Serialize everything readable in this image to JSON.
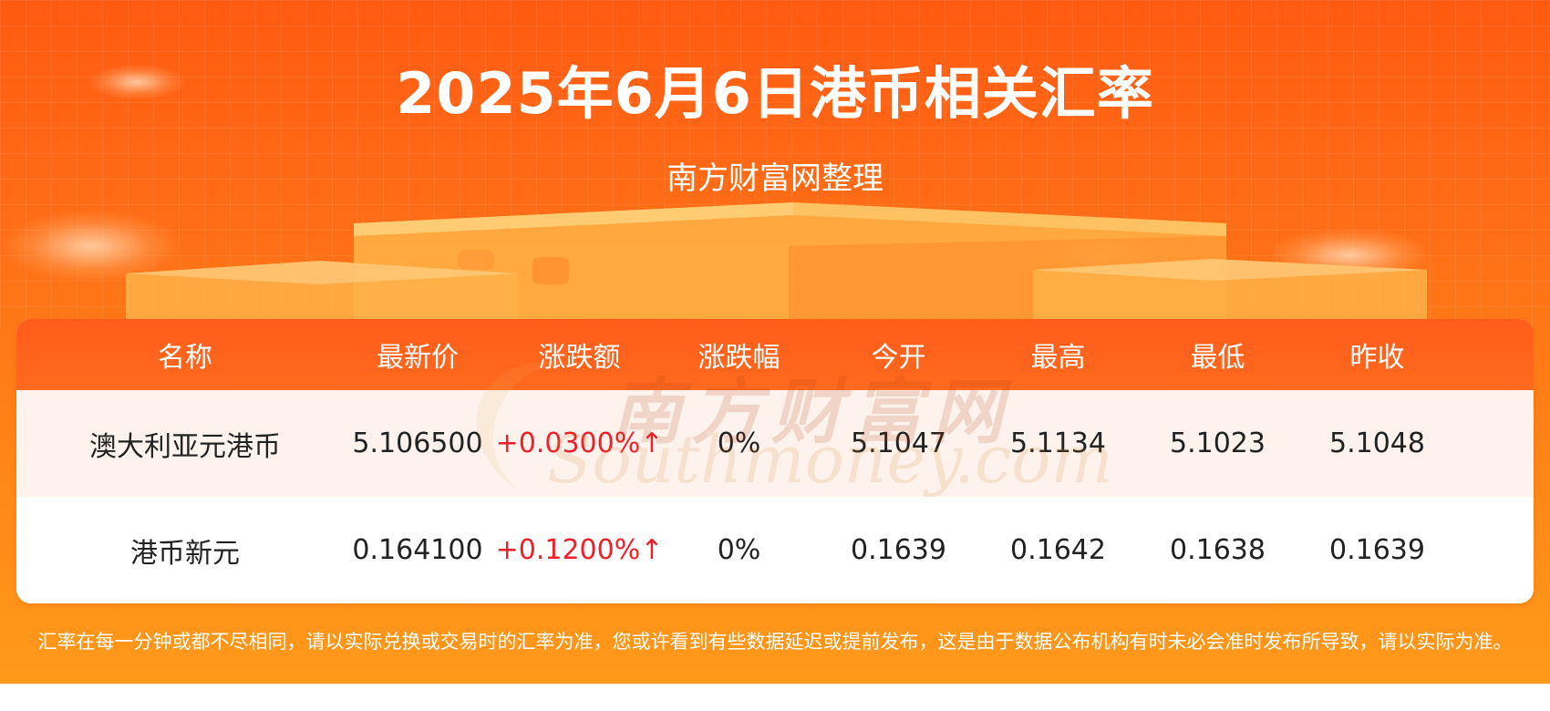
{
  "header": {
    "title": "2025年6月6日港币相关汇率",
    "subtitle": "南方财富网整理"
  },
  "table": {
    "columns": [
      "名称",
      "最新价",
      "涨跌额",
      "涨跌幅",
      "今开",
      "最高",
      "最低",
      "昨收"
    ],
    "rows": [
      [
        "澳大利亚元港币",
        "5.106500",
        "+0.0300%↑",
        "0%",
        "5.1047",
        "5.1134",
        "5.1023",
        "5.1048"
      ],
      [
        "港币新元",
        "0.164100",
        "+0.1200%↑",
        "0%",
        "0.1639",
        "0.1642",
        "0.1638",
        "0.1639"
      ]
    ]
  },
  "watermark": {
    "cn": "南方财富网",
    "en": "Southmoney.com"
  },
  "footnote": "汇率在每一分钟或都不尽相同，请以实际兑换或交易时的汇率为准，您或许看到有些数据延迟或提前发布，这是由于数据公布机构有时未必会准时发布所导致，请以实际为准。",
  "colors": {
    "background_top": "#ff5a12",
    "background_bottom": "#ff9a1a",
    "header_row": "#ff5c1a",
    "row_alt": "#fdf3ec",
    "up": "#f0202a"
  }
}
